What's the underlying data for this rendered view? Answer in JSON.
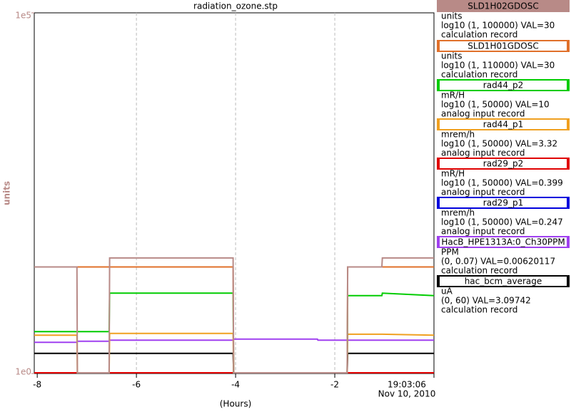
{
  "chart_data": {
    "type": "line",
    "title": "radiation_ozone.stp",
    "x_label": "(Hours)",
    "y_label": "units",
    "date_label": "Nov 10, 2010",
    "log_y": true,
    "grid": true,
    "axis_color": "#b88a87",
    "x": [
      -8.06,
      -7.2,
      -7.19,
      -6.55,
      -6.54,
      -4.05,
      -4.04,
      -2.35,
      -2.34,
      -1.75,
      -1.74,
      -1.05,
      -1.04,
      0
    ],
    "xlim": [
      -8.06,
      0
    ],
    "xticks": [
      -8,
      -6,
      -4,
      -2,
      {
        "value": 0,
        "label": "19:03:06"
      }
    ],
    "ylim": [
      1,
      100000
    ],
    "yticks": [
      {
        "value": 1,
        "label": "1e0"
      },
      {
        "value": 100000,
        "label": "1e5"
      }
    ],
    "series": [
      {
        "name": "SLD1H02GDOSC",
        "units": "units",
        "range": "log10 (1, 100000) VAL=30",
        "record": "calculation record",
        "color": "#b88a87",
        "values": [
          30,
          30,
          1,
          1,
          40,
          40,
          1,
          1,
          1,
          1,
          30,
          30,
          40,
          40
        ]
      },
      {
        "name": "SLD1H01GDOSC",
        "units": "units",
        "range": "log10 (1, 110000) VAL=30",
        "record": "calculation record",
        "color": "#e0702a",
        "values": [
          30,
          30,
          30,
          30,
          30,
          30,
          1,
          1,
          1,
          1,
          30,
          30,
          30,
          30
        ]
      },
      {
        "name": "rad44_p2",
        "units": "mR/H",
        "range": "log10 (1, 50000) VAL=10",
        "record": "analog input record",
        "color": "#00cc00",
        "values": [
          3.8,
          3.8,
          3.8,
          3.8,
          13,
          13,
          1,
          1,
          1,
          1,
          12,
          12,
          13,
          12
        ]
      },
      {
        "name": "rad44_p1",
        "units": "mrem/h",
        "range": "log10 (1, 50000) VAL=3.32",
        "record": "analog input record",
        "color": "#f0a020",
        "values": [
          3.4,
          3.4,
          1,
          1,
          3.6,
          3.6,
          1,
          1,
          1,
          1,
          3.5,
          3.5,
          3.5,
          3.4
        ]
      },
      {
        "name": "rad29_p2",
        "units": "mR/H",
        "range": "log10 (1, 50000) VAL=0.399",
        "record": "analog input record",
        "color": "#e00000",
        "values": [
          1,
          1,
          1,
          1,
          1,
          1,
          1,
          1,
          1,
          1,
          1,
          1,
          1,
          1
        ]
      },
      {
        "name": "rad29_p1",
        "units": "mrem/h",
        "range": "log10 (1, 50000) VAL=0.247",
        "record": "analog input record",
        "color": "#0000dd",
        "values": [
          1,
          1,
          1,
          1,
          1,
          1,
          1,
          1,
          1,
          1,
          1,
          1,
          1,
          1
        ]
      },
      {
        "name": "HacB_HPE1313A:0_Ch30PPM",
        "units": "PPM",
        "range": "(0, 0.07) VAL=0.00620117",
        "record": "calculation record",
        "color": "#a040f0",
        "values": [
          2.7,
          2.7,
          2.8,
          2.8,
          2.9,
          2.9,
          3.0,
          3.0,
          2.9,
          2.9,
          2.9,
          2.9,
          2.9,
          2.9
        ]
      },
      {
        "name": "hac_bcm_average",
        "units": "uA",
        "range": "(0, 60) VAL=3.09742",
        "record": "calculation record",
        "color": "#000000",
        "values": [
          1.9,
          1.9,
          1.9,
          1.9,
          1.9,
          1.9,
          1,
          1,
          1,
          1,
          1.9,
          1.9,
          1.9,
          1.9
        ]
      }
    ]
  }
}
